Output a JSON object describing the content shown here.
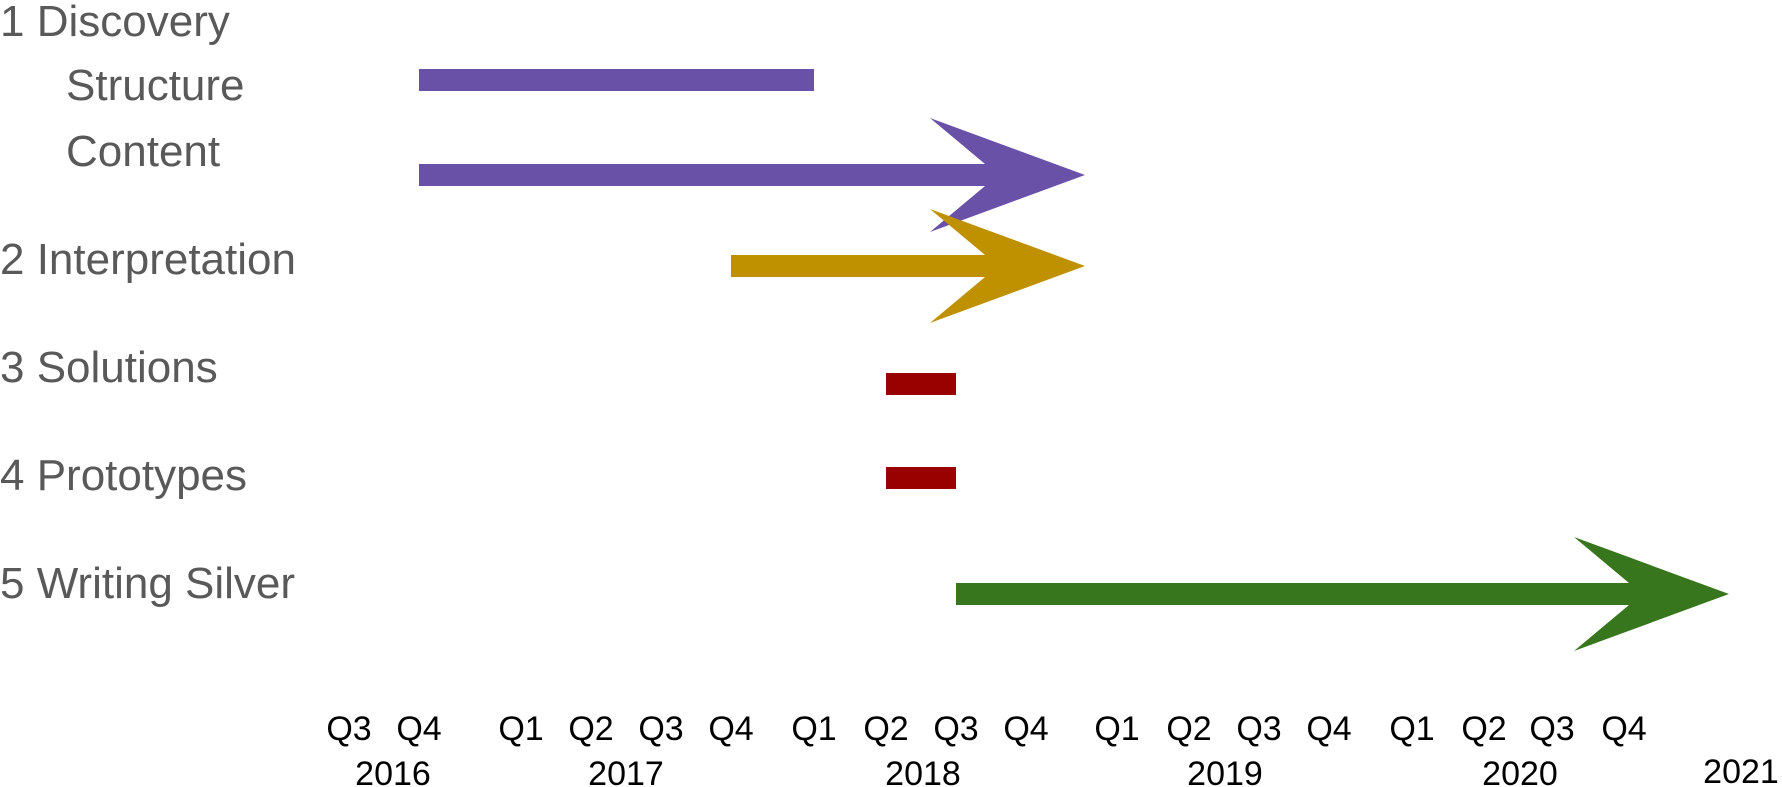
{
  "chart_data": {
    "type": "gantt",
    "rows": [
      {
        "label": "1 Discovery",
        "indent": false,
        "bar": null
      },
      {
        "label": "Structure",
        "indent": true,
        "bar": {
          "start": "2016 Q4",
          "end": "2018 Q1",
          "arrow": false,
          "color": "#6a51a8"
        }
      },
      {
        "label": "Content",
        "indent": true,
        "bar": {
          "start": "2016 Q4",
          "end": "2018 Q4",
          "arrow": true,
          "color": "#6a51a8"
        }
      },
      {
        "label": "2 Interpretation",
        "indent": false,
        "bar": {
          "start": "2017 Q4",
          "end": "2018 Q4",
          "arrow": true,
          "color": "#bf9000"
        }
      },
      {
        "label": "3 Solutions",
        "indent": false,
        "bar": {
          "start": "2018 Q2",
          "end": "2018 Q3",
          "arrow": false,
          "color": "#990000"
        }
      },
      {
        "label": "4 Prototypes",
        "indent": false,
        "bar": {
          "start": "2018 Q2",
          "end": "2018 Q3",
          "arrow": false,
          "color": "#990000"
        }
      },
      {
        "label": "5 Writing Silver",
        "indent": false,
        "bar": {
          "start": "2018 Q3",
          "end": "2021",
          "arrow": true,
          "color": "#38761d"
        }
      }
    ],
    "quarter_ticks": [
      "Q3",
      "Q4",
      "Q1",
      "Q2",
      "Q3",
      "Q4",
      "Q1",
      "Q2",
      "Q3",
      "Q4",
      "Q1",
      "Q2",
      "Q3",
      "Q4",
      "Q1",
      "Q2",
      "Q3",
      "Q4"
    ],
    "years": [
      "2016",
      "2017",
      "2018",
      "2019",
      "2020",
      "2021"
    ],
    "x_range": [
      "2016 Q3",
      "2021"
    ],
    "grid": false,
    "legend": "none"
  }
}
